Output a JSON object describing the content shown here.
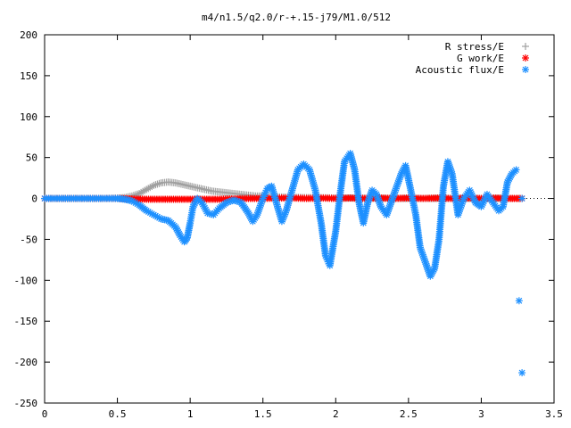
{
  "chart_data": {
    "type": "scatter",
    "title": "m4/n1.5/q2.0/r-+.15-j79/M1.0/512",
    "xlabel": "",
    "ylabel": "",
    "xlim": [
      0,
      3.5
    ],
    "ylim": [
      -250,
      200
    ],
    "xticks": [
      0,
      0.5,
      1,
      1.5,
      2,
      2.5,
      3,
      3.5
    ],
    "xtick_labels": [
      "0",
      "0.5",
      "1",
      "1.5",
      "2",
      "2.5",
      "3",
      "3.5"
    ],
    "yticks": [
      -250,
      -200,
      -150,
      -100,
      -50,
      0,
      50,
      100,
      150,
      200
    ],
    "ytick_labels": [
      "-250",
      "-200",
      "-150",
      "-100",
      "-50",
      "0",
      "50",
      "100",
      "150",
      "200"
    ],
    "grid": false,
    "legend_position": "top-right",
    "series": [
      {
        "name": "R stress/E",
        "marker": "plus",
        "color": "#a0a0a0",
        "x": [
          0.0,
          0.1,
          0.2,
          0.3,
          0.4,
          0.5,
          0.55,
          0.6,
          0.65,
          0.7,
          0.75,
          0.8,
          0.85,
          0.9,
          0.95,
          1.0,
          1.05,
          1.1,
          1.15,
          1.2,
          1.25,
          1.3,
          1.35,
          1.4,
          1.45,
          1.5,
          1.6,
          1.7,
          1.8,
          1.9,
          2.0,
          2.2,
          2.4,
          2.6,
          2.8,
          3.0,
          3.2,
          3.28
        ],
        "y": [
          0,
          0,
          0,
          0,
          0,
          0.5,
          1,
          3,
          6,
          11,
          16,
          19,
          20,
          19,
          17,
          15,
          13,
          11,
          9,
          8,
          7,
          6,
          5,
          4,
          3,
          3,
          2,
          1.5,
          1,
          1,
          0.5,
          0.5,
          0,
          0,
          0,
          0,
          0,
          0
        ]
      },
      {
        "name": "G work/E",
        "marker": "star",
        "color": "#ff0000",
        "x": [
          0.0,
          0.1,
          0.2,
          0.3,
          0.4,
          0.5,
          0.6,
          0.7,
          0.8,
          0.9,
          1.0,
          1.1,
          1.2,
          1.3,
          1.4,
          1.5,
          1.6,
          1.7,
          1.8,
          1.9,
          2.0,
          2.1,
          2.2,
          2.3,
          2.4,
          2.5,
          2.6,
          2.7,
          2.8,
          2.9,
          3.0,
          3.1,
          3.2,
          3.28
        ],
        "y": [
          0,
          0,
          0,
          0,
          0,
          0,
          -0.5,
          -1,
          -1,
          -1,
          -1,
          -1,
          -1,
          -0.5,
          0,
          0,
          0.5,
          0.5,
          0,
          0.5,
          0,
          0.5,
          0,
          0.5,
          0,
          0.5,
          0,
          0.5,
          0,
          0.5,
          0,
          0.5,
          0,
          0
        ]
      },
      {
        "name": "Acoustic flux/E",
        "marker": "star",
        "color": "#1e90ff",
        "x": [
          0.0,
          0.1,
          0.2,
          0.3,
          0.4,
          0.5,
          0.55,
          0.6,
          0.65,
          0.7,
          0.75,
          0.8,
          0.85,
          0.9,
          0.93,
          0.96,
          0.98,
          1.0,
          1.02,
          1.05,
          1.08,
          1.12,
          1.16,
          1.2,
          1.25,
          1.3,
          1.35,
          1.4,
          1.43,
          1.46,
          1.5,
          1.53,
          1.56,
          1.6,
          1.63,
          1.66,
          1.7,
          1.74,
          1.78,
          1.82,
          1.86,
          1.9,
          1.93,
          1.96,
          2.0,
          2.03,
          2.06,
          2.1,
          2.13,
          2.16,
          2.19,
          2.22,
          2.25,
          2.28,
          2.31,
          2.35,
          2.38,
          2.41,
          2.45,
          2.48,
          2.51,
          2.55,
          2.58,
          2.62,
          2.65,
          2.68,
          2.71,
          2.74,
          2.77,
          2.8,
          2.84,
          2.88,
          2.92,
          2.96,
          3.0,
          3.04,
          3.08,
          3.12,
          3.15,
          3.18,
          3.21,
          3.24,
          3.26,
          3.28,
          3.28
        ],
        "y": [
          0,
          0,
          0,
          0,
          0,
          0,
          -1,
          -3,
          -8,
          -15,
          -20,
          -25,
          -27,
          -35,
          -45,
          -53,
          -48,
          -30,
          -10,
          0,
          -5,
          -18,
          -20,
          -12,
          -5,
          -2,
          -5,
          -18,
          -28,
          -20,
          0,
          12,
          15,
          -10,
          -28,
          -15,
          10,
          35,
          42,
          35,
          10,
          -30,
          -70,
          -82,
          -40,
          5,
          45,
          55,
          35,
          -5,
          -30,
          -5,
          10,
          5,
          -10,
          -20,
          -5,
          10,
          30,
          40,
          15,
          -20,
          -60,
          -80,
          -95,
          -85,
          -50,
          15,
          45,
          30,
          -20,
          0,
          10,
          -5,
          -10,
          5,
          -5,
          -15,
          -10,
          20,
          30,
          35,
          -125,
          -213,
          0
        ]
      }
    ]
  }
}
